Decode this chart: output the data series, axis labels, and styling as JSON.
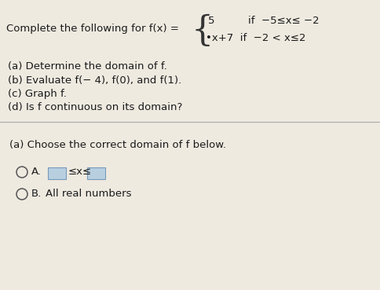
{
  "background_color": "#eeeae0",
  "text_color": "#1a1a1a",
  "radio_color": "#555555",
  "box_color": "#b8cfe0",
  "box_edge_color": "#7799bb",
  "divider_color": "#aaaaaa",
  "font_size": 9.5,
  "font_size_small": 9.0,
  "title": "Complete the following for f(x) =",
  "piece1": "5          if  −5≤x≤ −2",
  "piece2": "•x+7  if  −2 < x≤2",
  "questions": [
    "(a) Determine the domain of f.",
    "(b) Evaluate f(− 4), f(0), and f(1).",
    "(c) Graph f.",
    "(d) Is f continuous on its domain?"
  ],
  "answer_header": "(a) Choose the correct domain of f below.",
  "optA_label": "A.",
  "optA_leq": "≤x≤",
  "optB_label": "B.",
  "optB_text": "All real numbers"
}
